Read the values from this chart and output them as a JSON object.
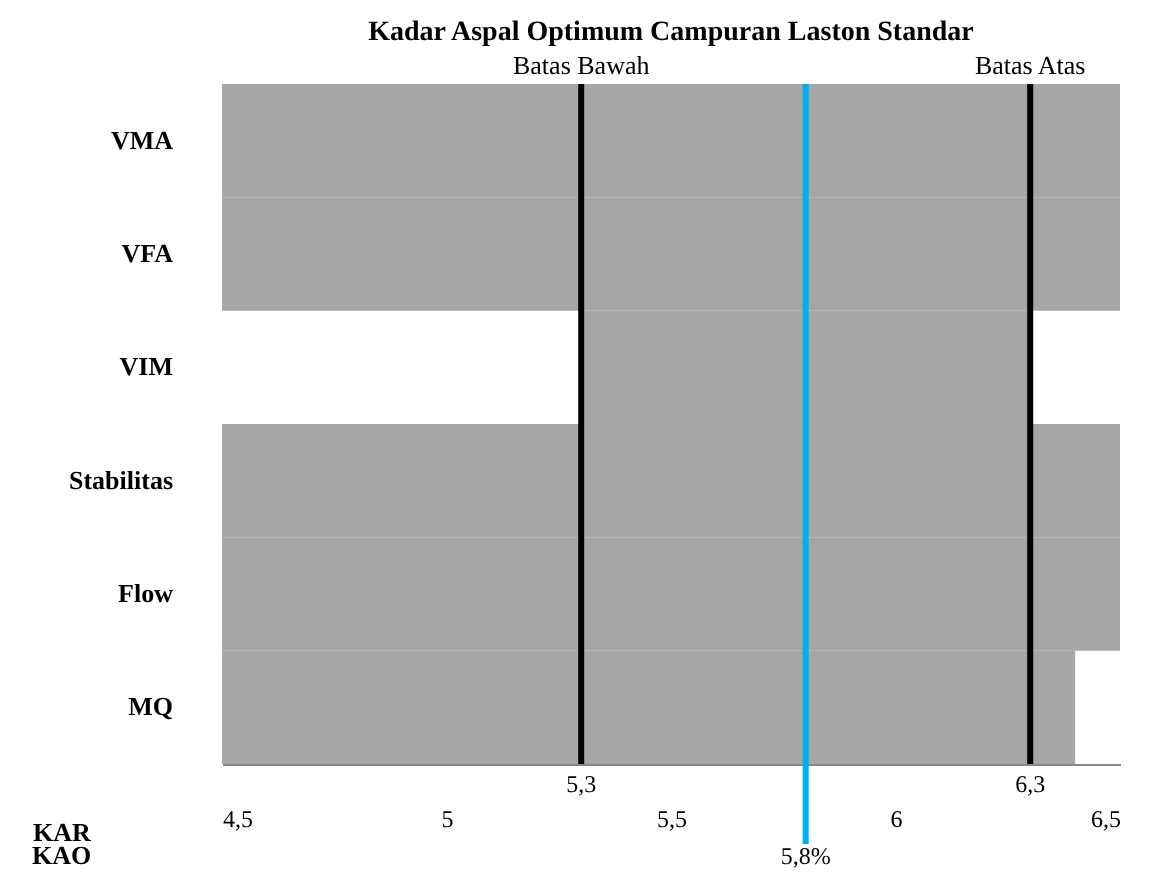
{
  "chart_data": {
    "type": "bar",
    "orientation": "horizontal",
    "title": "Kadar Aspal Optimum Campuran Laston Standar",
    "categories": [
      "VMA",
      "VFA",
      "VIM",
      "Stabilitas",
      "Flow",
      "MQ"
    ],
    "base": [
      4.5,
      4.5,
      5.3,
      4.5,
      4.5,
      4.5
    ],
    "values": [
      2.0,
      2.0,
      1.0,
      2.0,
      2.0,
      1.9
    ],
    "color": "#a6a6a6",
    "xlim": [
      4.5,
      6.5
    ],
    "xticks": [
      {
        "value": 4.5,
        "label": "4,5"
      },
      5,
      {
        "value": 5.5,
        "label": "5,5"
      },
      6,
      {
        "value": 6.5,
        "label": "6,5"
      }
    ],
    "xlabel": "KAR",
    "ref_lines": [
      {
        "axis": "x",
        "value": 5.3,
        "label": "5,3",
        "color": "#000000"
      },
      {
        "axis": "x",
        "value": 6.3,
        "label": "6,3",
        "color": "#000000"
      },
      {
        "axis": "x",
        "value": 5.8,
        "label": "5,8%",
        "color": "#00b0f0"
      }
    ],
    "annotations": [
      "Batas Bawah",
      "Batas Atas",
      "KAO"
    ]
  }
}
